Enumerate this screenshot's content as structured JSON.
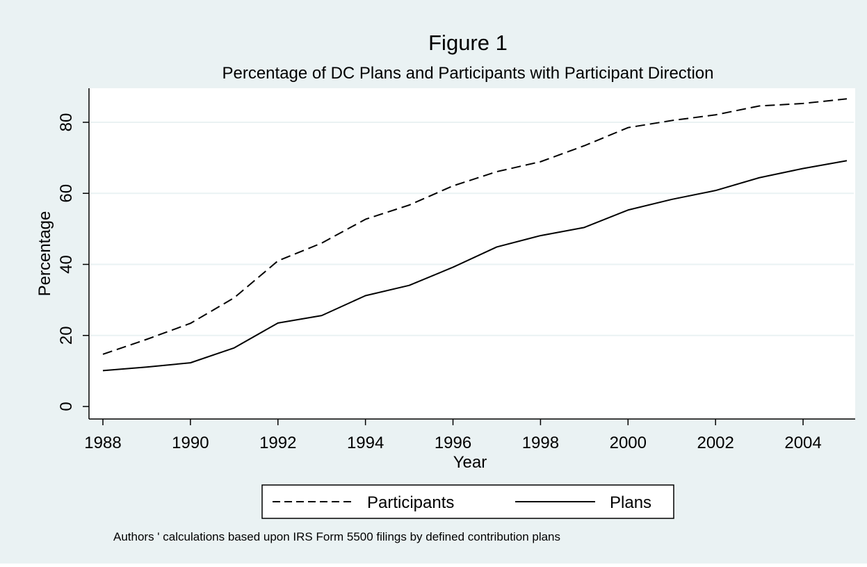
{
  "chart_data": {
    "type": "line",
    "title": "Figure 1",
    "subtitle": "Percentage of DC Plans and Participants with Participant Direction",
    "xlabel": "Year",
    "ylabel": "Percentage",
    "xlim": [
      1988,
      2005
    ],
    "ylim": [
      0,
      90
    ],
    "x_ticks": [
      1988,
      1990,
      1992,
      1994,
      1996,
      1998,
      2000,
      2002,
      2004
    ],
    "y_ticks": [
      0,
      20,
      40,
      60,
      80
    ],
    "grid": true,
    "legend_position": "bottom",
    "x": [
      1988,
      1989,
      1990,
      1991,
      1992,
      1993,
      1994,
      1995,
      1996,
      1997,
      1998,
      1999,
      2000,
      2001,
      2002,
      2003,
      2004,
      2005
    ],
    "series": [
      {
        "name": "Participants",
        "line_style": "dashed",
        "values": [
          14.7,
          18.9,
          23.4,
          30.6,
          41.0,
          46.0,
          52.7,
          56.7,
          62.1,
          66.1,
          68.9,
          73.4,
          78.5,
          80.5,
          82.1,
          84.6,
          85.3,
          86.6
        ]
      },
      {
        "name": "Plans",
        "line_style": "solid",
        "values": [
          10.1,
          11.1,
          12.3,
          16.5,
          23.5,
          25.6,
          31.2,
          34.1,
          39.2,
          44.9,
          48.1,
          50.4,
          55.3,
          58.3,
          60.8,
          64.4,
          67.0,
          69.2
        ]
      }
    ],
    "note": "Authors ' calculations based upon IRS Form 5500 filings by defined contribution plans",
    "colors": {
      "background": "#eaf2f3",
      "plot_background": "#ffffff",
      "grid": "#eaf2f3",
      "line": "#000000"
    }
  }
}
